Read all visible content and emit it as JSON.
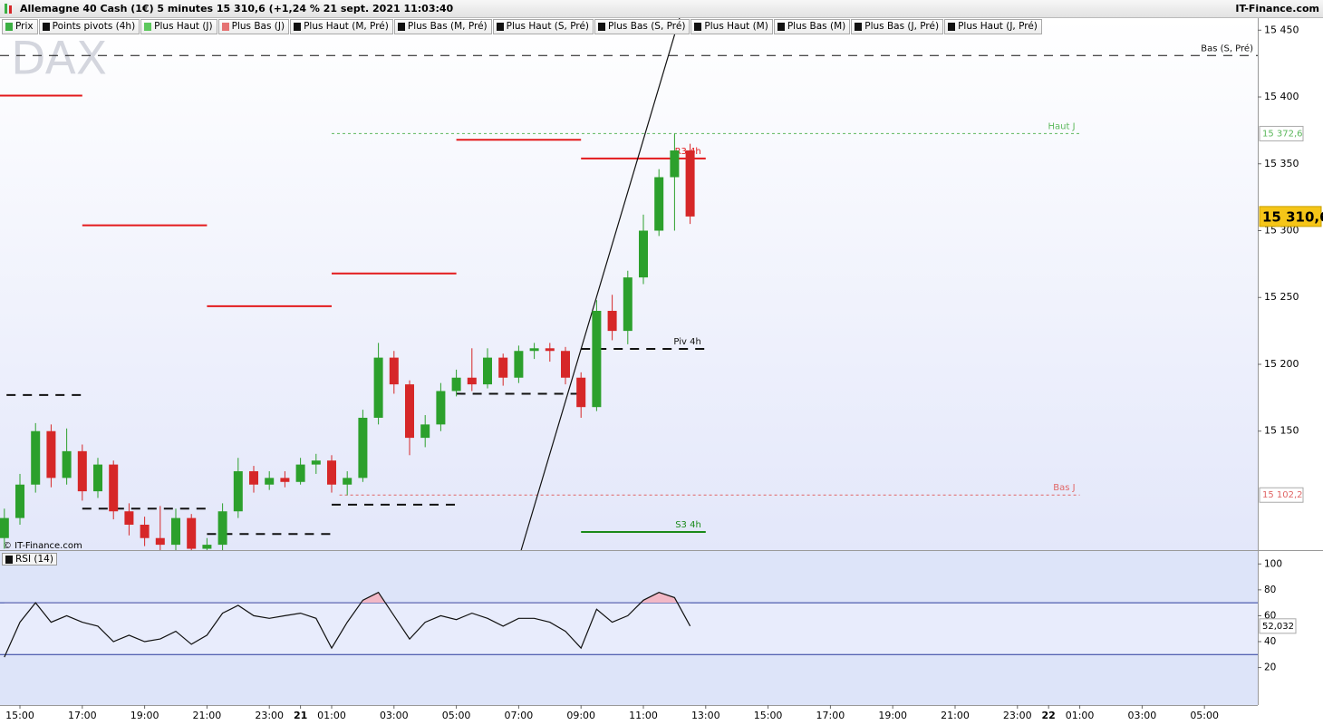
{
  "header": {
    "title": "Allemagne 40 Cash (1€) 5 minutes 15 310,6 (+1,24 % 21 sept. 2021 11:03:40",
    "brand": "IT-Finance.com"
  },
  "toolbar": [
    {
      "label": "Prix",
      "color": "#3cb043"
    },
    {
      "label": "Points pivots (4h)",
      "color": "#111111"
    },
    {
      "label": "Plus Haut (J)",
      "color": "#5cc85c"
    },
    {
      "label": "Plus Bas (J)",
      "color": "#e57373"
    },
    {
      "label": "Plus Haut (M, Pré)",
      "color": "#111111"
    },
    {
      "label": "Plus Bas (M, Pré)",
      "color": "#111111"
    },
    {
      "label": "Plus Haut (S, Pré)",
      "color": "#111111"
    },
    {
      "label": "Plus Bas (S, Pré)",
      "color": "#111111"
    },
    {
      "label": "Plus Haut (M)",
      "color": "#111111"
    },
    {
      "label": "Plus Bas (M)",
      "color": "#111111"
    },
    {
      "label": "Plus Bas (J, Pré)",
      "color": "#111111"
    },
    {
      "label": "Plus Haut (J, Pré)",
      "color": "#111111"
    }
  ],
  "chart_data": [
    {
      "type": "candlestick",
      "watermark": "DAX",
      "copyright": "© IT-Finance.com",
      "up_color": "#2ca02c",
      "down_color": "#d62728",
      "grid": false,
      "x": [
        -0.5,
        0,
        0.5,
        1,
        1.5,
        2,
        2.5,
        3,
        3.5,
        4,
        4.5,
        5,
        5.5,
        6,
        6.5,
        7,
        7.5,
        8,
        8.5,
        9,
        9.5,
        10,
        10.5,
        11,
        11.5,
        12,
        12.5,
        13,
        13.5,
        14,
        14.5,
        15,
        15.5,
        16,
        16.5,
        17,
        17.5,
        18,
        18.5,
        19,
        19.5,
        20,
        20.5,
        21,
        21.5
      ],
      "open": [
        15070,
        15085,
        15110,
        15150,
        15115,
        15135,
        15105,
        15125,
        15090,
        15080,
        15070,
        15065,
        15085,
        15062,
        15065,
        15090,
        15120,
        15110,
        15115,
        15112,
        15125,
        15128,
        15110,
        15115,
        15160,
        15205,
        15185,
        15145,
        15155,
        15180,
        15190,
        15185,
        15205,
        15190,
        15210,
        15212,
        15210,
        15190,
        15168,
        15240,
        15225,
        15265,
        15300,
        15340,
        15360
      ],
      "high": [
        15092,
        15118,
        15156,
        15155,
        15152,
        15140,
        15130,
        15128,
        15096,
        15086,
        15094,
        15092,
        15088,
        15070,
        15096,
        15130,
        15124,
        15120,
        15120,
        15130,
        15133,
        15132,
        15120,
        15166,
        15216,
        15210,
        15188,
        15162,
        15186,
        15196,
        15212,
        15212,
        15208,
        15214,
        15216,
        15216,
        15213,
        15194,
        15248,
        15252,
        15270,
        15312,
        15346,
        15372.6,
        15365
      ],
      "low": [
        15062,
        15080,
        15104,
        15108,
        15110,
        15098,
        15100,
        15084,
        15072,
        15064,
        15060,
        15060,
        15058,
        15050,
        15060,
        15085,
        15104,
        15106,
        15108,
        15110,
        15118,
        15104,
        15102,
        15112,
        15155,
        15178,
        15132,
        15138,
        15150,
        15176,
        15180,
        15182,
        15184,
        15186,
        15204,
        15202,
        15185,
        15160,
        15165,
        15218,
        15215,
        15260,
        15296,
        15300,
        15305
      ],
      "close": [
        15085,
        15110,
        15150,
        15115,
        15135,
        15105,
        15125,
        15090,
        15080,
        15070,
        15065,
        15085,
        15062,
        15065,
        15090,
        15120,
        15110,
        15115,
        15112,
        15125,
        15128,
        15110,
        15115,
        15160,
        15205,
        15185,
        15145,
        15155,
        15180,
        15190,
        15185,
        15205,
        15190,
        15210,
        15212,
        15210,
        15190,
        15168,
        15240,
        15225,
        15265,
        15300,
        15340,
        15360,
        15310.6
      ],
      "last_label": "15 310,6",
      "xlim": [
        -0.64,
        39.71
      ],
      "xticks": [
        {
          "value": 0,
          "label": "15:00"
        },
        {
          "value": 2,
          "label": "17:00"
        },
        {
          "value": 4,
          "label": "19:00"
        },
        {
          "value": 6,
          "label": "21:00"
        },
        {
          "value": 8,
          "label": "23:00"
        },
        {
          "value": 9,
          "label": "21"
        },
        {
          "value": 10,
          "label": "01:00"
        },
        {
          "value": 12,
          "label": "03:00"
        },
        {
          "value": 14,
          "label": "05:00"
        },
        {
          "value": 16,
          "label": "07:00"
        },
        {
          "value": 18,
          "label": "09:00"
        },
        {
          "value": 20,
          "label": "11:00"
        },
        {
          "value": 22,
          "label": "13:00"
        },
        {
          "value": 24,
          "label": "15:00"
        },
        {
          "value": 26,
          "label": "17:00"
        },
        {
          "value": 28,
          "label": "19:00"
        },
        {
          "value": 30,
          "label": "21:00"
        },
        {
          "value": 32,
          "label": "23:00"
        },
        {
          "value": 33,
          "label": "22"
        },
        {
          "value": 34,
          "label": "01:00"
        },
        {
          "value": 36,
          "label": "03:00"
        },
        {
          "value": 38,
          "label": "05:00"
        }
      ],
      "ylim": [
        15061,
        15459
      ],
      "yticks": [
        {
          "value": 15450,
          "label": "15 450"
        },
        {
          "value": 15400,
          "label": "15 400"
        },
        {
          "value": 15350,
          "label": "15 350"
        },
        {
          "value": 15300,
          "label": "15 300"
        },
        {
          "value": 15250,
          "label": "15 250"
        },
        {
          "value": 15200,
          "label": "15 200"
        },
        {
          "value": 15150,
          "label": "15 150"
        }
      ],
      "pivot_series": [
        {
          "name": "R3 4h",
          "color": "#e31a1c",
          "style": "solid",
          "starts": [
            -2,
            2,
            6,
            10,
            14,
            18
          ],
          "ends": [
            2,
            6,
            10,
            14,
            18,
            22
          ],
          "values": [
            15401,
            15304,
            15243.5,
            15268,
            15368,
            15354
          ]
        },
        {
          "name": "Piv 4h",
          "color": "#111111",
          "style": "dashed",
          "starts": [
            -2,
            2,
            6,
            10,
            14,
            18
          ],
          "ends": [
            2,
            6,
            10,
            14,
            18,
            22
          ],
          "values": [
            15177,
            15092,
            15073,
            15095,
            15178,
            15211.5
          ]
        },
        {
          "name": "S3 4h",
          "color": "#1a8a1a",
          "style": "solid",
          "starts": [
            18
          ],
          "ends": [
            22
          ],
          "values": [
            15074.6
          ]
        }
      ],
      "levels": [
        {
          "name": "Haut J",
          "value": 15372.6,
          "value_label": "15 372,6",
          "color": "#5cb85c",
          "style": "dotted",
          "start": 10,
          "end": 34
        },
        {
          "name": "Bas J",
          "value": 15102.2,
          "value_label": "15 102,2",
          "color": "#e06666",
          "style": "dotted",
          "start": 10.25,
          "end": 34
        },
        {
          "name": "Bas (S, Pré)",
          "value": 15431,
          "color": "#111111",
          "style": "dashed",
          "start": -0.64,
          "end": 39.71
        }
      ],
      "trendline": {
        "x": [
          16.08,
          21.16
        ],
        "y": [
          15061,
          15459
        ]
      }
    },
    {
      "type": "line",
      "name": "RSI (14)",
      "color": "#111111",
      "fill_color": "#f2b8c6",
      "band_color": "#e8ecfc",
      "level_color": "#2a3a9a",
      "x": [
        -0.5,
        0,
        0.5,
        1,
        1.5,
        2,
        2.5,
        3,
        3.5,
        4,
        4.5,
        5,
        5.5,
        6,
        6.5,
        7,
        7.5,
        8,
        8.5,
        9,
        9.5,
        10,
        10.5,
        11,
        11.5,
        12,
        12.5,
        13,
        13.5,
        14,
        14.5,
        15,
        15.5,
        16,
        16.5,
        17,
        17.5,
        18,
        18.5,
        19,
        19.5,
        20,
        20.5,
        21,
        21.5
      ],
      "values": [
        28,
        55,
        70,
        55,
        60,
        55,
        52,
        40,
        45,
        40,
        42,
        48,
        38,
        45,
        62,
        68,
        60,
        58,
        60,
        62,
        58,
        35,
        55,
        72,
        78,
        60,
        42,
        55,
        60,
        57,
        62,
        58,
        52,
        58,
        58,
        55,
        48,
        35,
        65,
        55,
        60,
        72,
        78,
        74,
        52.032
      ],
      "last_label": "52,032",
      "levels": [
        30,
        70
      ],
      "ylim": [
        -9,
        110
      ],
      "yticks": [
        100,
        80,
        60,
        40,
        20
      ]
    }
  ]
}
